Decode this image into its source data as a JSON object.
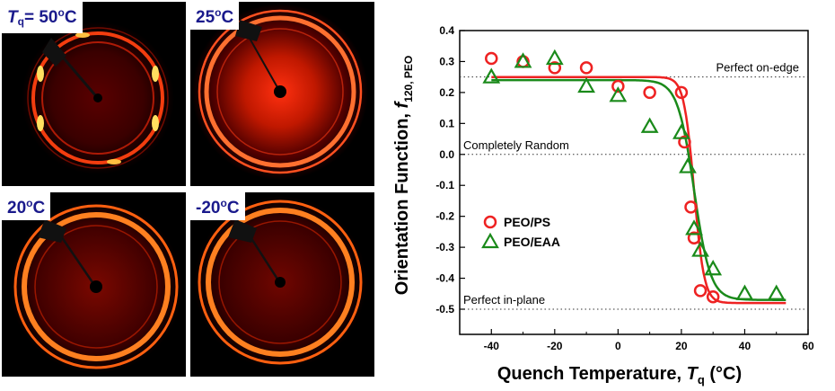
{
  "panels": [
    {
      "id": "p50",
      "prefix_italic": "T",
      "prefix_sub": "q",
      "text": "= 50",
      "sup": "o",
      "unit": "C"
    },
    {
      "id": "p25",
      "prefix_italic": "",
      "prefix_sub": "",
      "text": "25",
      "sup": "o",
      "unit": "C"
    },
    {
      "id": "p20",
      "prefix_italic": "",
      "prefix_sub": "",
      "text": "20",
      "sup": "o",
      "unit": "C"
    },
    {
      "id": "pm20",
      "prefix_italic": "",
      "prefix_sub": "",
      "text": "-20",
      "sup": "o",
      "unit": "C"
    }
  ],
  "chart_data": {
    "type": "scatter",
    "xlabel": "Quench Temperature, T q (°C)",
    "ylabel": "Orientation Function, f 120, PEO",
    "xlim": [
      -50,
      60
    ],
    "ylim": [
      -0.5,
      0.4
    ],
    "xticks": [
      -40,
      -20,
      0,
      20,
      40,
      60
    ],
    "yticks": [
      0.4,
      0.3,
      0.2,
      0.1,
      0.0,
      -0.1,
      -0.2,
      -0.3,
      -0.4,
      -0.5
    ],
    "ytick_labels": [
      "0.4",
      "0.3",
      "0.2",
      "0.1",
      "0.0",
      "-0.1",
      "-0.2",
      "-0.3",
      "-0.4",
      "-0.5"
    ],
    "reference_lines": [
      {
        "y": 0.25,
        "label": "Perfect on-edge"
      },
      {
        "y": 0.0,
        "label": "Completely Random"
      },
      {
        "y": -0.5,
        "label": "Perfect in-plane"
      }
    ],
    "series": [
      {
        "name": "PEO/PS",
        "marker": "circle",
        "color": "#ee2222",
        "points": [
          [
            -40,
            0.31
          ],
          [
            -30,
            0.3
          ],
          [
            -20,
            0.28
          ],
          [
            -10,
            0.28
          ],
          [
            0,
            0.22
          ],
          [
            10,
            0.2
          ],
          [
            20,
            0.2
          ],
          [
            21,
            0.04
          ],
          [
            23,
            -0.17
          ],
          [
            24,
            -0.27
          ],
          [
            26,
            -0.44
          ],
          [
            30,
            -0.46
          ]
        ],
        "fit": {
          "top": 0.25,
          "bottom": -0.48,
          "x0": 24,
          "width": 1.6
        }
      },
      {
        "name": "PEO/EAA",
        "marker": "triangle",
        "color": "#1a8a1a",
        "points": [
          [
            -40,
            0.25
          ],
          [
            -30,
            0.3
          ],
          [
            -20,
            0.31
          ],
          [
            -10,
            0.22
          ],
          [
            0,
            0.19
          ],
          [
            10,
            0.09
          ],
          [
            20,
            0.07
          ],
          [
            22,
            -0.04
          ],
          [
            24,
            -0.24
          ],
          [
            26,
            -0.31
          ],
          [
            30,
            -0.37
          ],
          [
            40,
            -0.45
          ],
          [
            50,
            -0.45
          ]
        ],
        "fit": {
          "top": 0.24,
          "bottom": -0.47,
          "x0": 24,
          "width": 2.6
        }
      }
    ]
  },
  "colors": {
    "label_text": "#1a1a8c",
    "ref_line": "#333333"
  }
}
